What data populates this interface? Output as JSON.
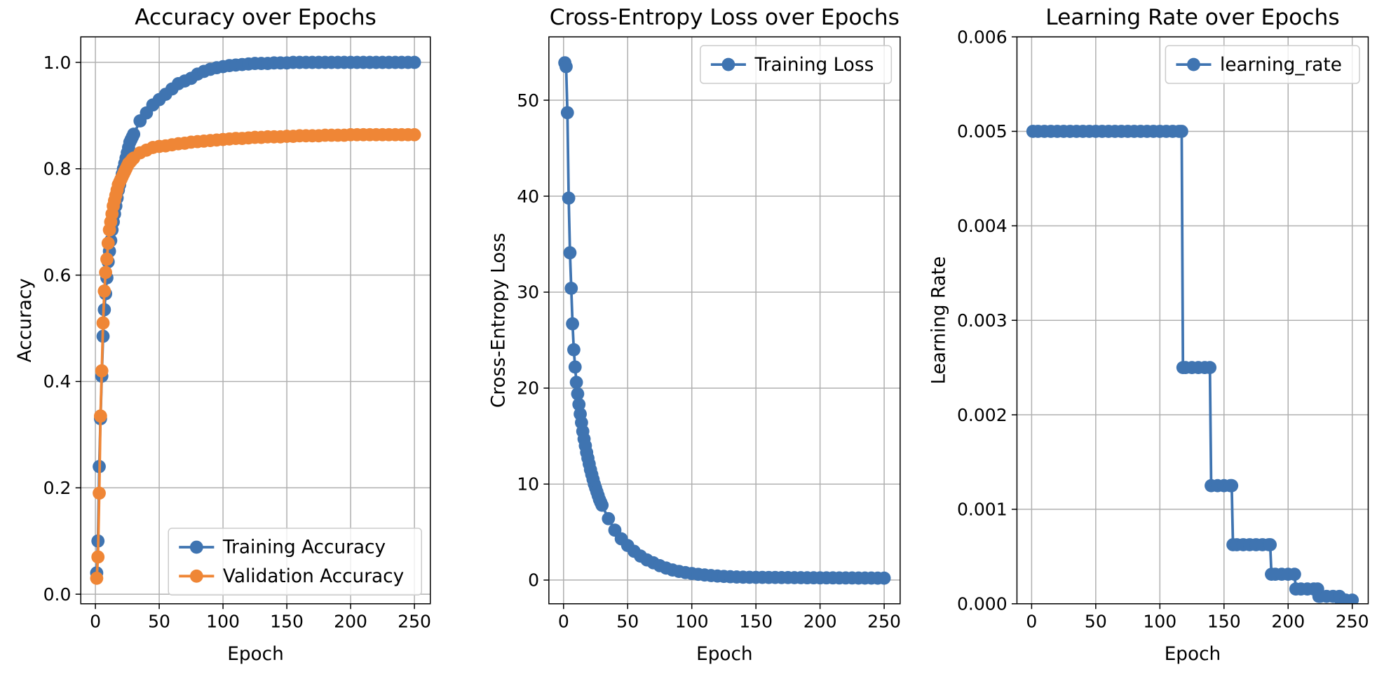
{
  "chart_data": [
    {
      "type": "line",
      "title": "Accuracy over Epochs",
      "xlabel": "Epoch",
      "ylabel": "Accuracy",
      "x": [
        1,
        2,
        3,
        4,
        5,
        6,
        7,
        8,
        9,
        10,
        11,
        12,
        13,
        14,
        15,
        16,
        17,
        18,
        19,
        20,
        21,
        22,
        23,
        24,
        25,
        26,
        27,
        28,
        29,
        30,
        35,
        40,
        45,
        50,
        55,
        60,
        65,
        70,
        75,
        80,
        85,
        90,
        95,
        100,
        105,
        110,
        115,
        120,
        125,
        130,
        135,
        140,
        145,
        150,
        155,
        160,
        165,
        170,
        175,
        180,
        185,
        190,
        195,
        200,
        205,
        210,
        215,
        220,
        225,
        230,
        235,
        240,
        245,
        250
      ],
      "series": [
        {
          "name": "Training Accuracy",
          "color": "#3f74b1",
          "values": [
            0.04,
            0.1,
            0.24,
            0.33,
            0.41,
            0.485,
            0.535,
            0.565,
            0.595,
            0.625,
            0.645,
            0.665,
            0.685,
            0.7,
            0.715,
            0.73,
            0.745,
            0.76,
            0.77,
            0.78,
            0.79,
            0.8,
            0.81,
            0.82,
            0.83,
            0.84,
            0.85,
            0.855,
            0.86,
            0.865,
            0.89,
            0.905,
            0.92,
            0.93,
            0.94,
            0.95,
            0.96,
            0.965,
            0.97,
            0.978,
            0.983,
            0.987,
            0.99,
            0.992,
            0.994,
            0.995,
            0.996,
            0.997,
            0.998,
            0.998,
            0.998,
            0.999,
            0.999,
            0.999,
            1.0,
            1.0,
            1.0,
            1.0,
            1.0,
            1.0,
            1.0,
            1.0,
            1.0,
            1.0,
            1.0,
            1.0,
            1.0,
            1.0,
            1.0,
            1.0,
            1.0,
            1.0,
            1.0,
            1.0
          ]
        },
        {
          "name": "Validation Accuracy",
          "color": "#ef8636",
          "values": [
            0.03,
            0.07,
            0.19,
            0.335,
            0.42,
            0.51,
            0.57,
            0.605,
            0.63,
            0.66,
            0.685,
            0.7,
            0.715,
            0.73,
            0.74,
            0.75,
            0.76,
            0.77,
            0.775,
            0.78,
            0.785,
            0.79,
            0.795,
            0.8,
            0.805,
            0.81,
            0.812,
            0.815,
            0.818,
            0.82,
            0.83,
            0.835,
            0.84,
            0.842,
            0.843,
            0.845,
            0.847,
            0.848,
            0.85,
            0.851,
            0.852,
            0.853,
            0.854,
            0.855,
            0.856,
            0.857,
            0.857,
            0.858,
            0.859,
            0.859,
            0.86,
            0.86,
            0.86,
            0.861,
            0.861,
            0.862,
            0.862,
            0.862,
            0.862,
            0.863,
            0.863,
            0.863,
            0.863,
            0.864,
            0.864,
            0.864,
            0.864,
            0.864,
            0.864,
            0.864,
            0.864,
            0.864,
            0.864,
            0.864
          ]
        }
      ],
      "xlim": [
        -11.45,
        262.45
      ],
      "ylim": [
        -0.018,
        1.048
      ],
      "xticks": [
        0,
        50,
        100,
        150,
        200,
        250
      ],
      "yticks": [
        {
          "value": 0,
          "label": "0.0"
        },
        0.2,
        0.4,
        0.6,
        0.8,
        {
          "value": 1,
          "label": "1.0"
        }
      ],
      "grid": true,
      "legend": "lower right"
    },
    {
      "type": "line",
      "title": "Cross-Entropy Loss over Epochs",
      "xlabel": "Epoch",
      "ylabel": "Cross-Entropy Loss",
      "x": [
        1,
        2,
        3,
        4,
        5,
        6,
        7,
        8,
        9,
        10,
        11,
        12,
        13,
        14,
        15,
        16,
        17,
        18,
        19,
        20,
        21,
        22,
        23,
        24,
        25,
        26,
        27,
        28,
        29,
        30,
        35,
        40,
        45,
        50,
        55,
        60,
        65,
        70,
        75,
        80,
        85,
        90,
        95,
        100,
        105,
        110,
        115,
        120,
        125,
        130,
        135,
        140,
        145,
        150,
        155,
        160,
        165,
        170,
        175,
        180,
        185,
        190,
        195,
        200,
        205,
        210,
        215,
        220,
        225,
        230,
        235,
        240,
        245,
        250
      ],
      "series": [
        {
          "name": "Training Loss",
          "color": "#3f74b1",
          "values": [
            53.9,
            53.5,
            48.7,
            39.8,
            34.1,
            30.4,
            26.7,
            24.0,
            22.2,
            20.6,
            19.4,
            18.3,
            17.3,
            16.4,
            15.5,
            14.7,
            14.0,
            13.3,
            12.7,
            12.1,
            11.5,
            11.0,
            10.5,
            10.0,
            9.6,
            9.2,
            8.8,
            8.4,
            8.1,
            7.8,
            6.4,
            5.2,
            4.3,
            3.6,
            3.0,
            2.5,
            2.1,
            1.8,
            1.5,
            1.25,
            1.05,
            0.9,
            0.78,
            0.68,
            0.6,
            0.53,
            0.47,
            0.42,
            0.38,
            0.35,
            0.32,
            0.3,
            0.29,
            0.28,
            0.28,
            0.27,
            0.27,
            0.26,
            0.26,
            0.25,
            0.25,
            0.24,
            0.24,
            0.23,
            0.23,
            0.23,
            0.22,
            0.22,
            0.22,
            0.21,
            0.21,
            0.21,
            0.2,
            0.2
          ]
        }
      ],
      "xlim": [
        -11.45,
        262.45
      ],
      "ylim": [
        -2.47,
        56.6
      ],
      "xticks": [
        0,
        50,
        100,
        150,
        200,
        250
      ],
      "yticks": [
        0,
        10,
        20,
        30,
        40,
        50
      ],
      "grid": true,
      "legend": "upper right"
    },
    {
      "type": "line",
      "title": "Learning Rate over Epochs",
      "xlabel": "Epoch",
      "ylabel": "Learning Rate",
      "x": [
        1,
        5,
        10,
        15,
        20,
        25,
        30,
        35,
        40,
        45,
        50,
        55,
        60,
        65,
        70,
        75,
        80,
        85,
        90,
        95,
        100,
        105,
        110,
        115,
        117,
        118,
        120,
        125,
        130,
        135,
        139,
        140,
        145,
        150,
        155,
        156,
        157,
        160,
        165,
        170,
        175,
        180,
        185,
        186,
        187,
        190,
        195,
        200,
        205,
        206,
        210,
        215,
        220,
        223,
        224,
        225,
        230,
        235,
        240,
        241,
        245,
        250
      ],
      "series": [
        {
          "name": "learning_rate",
          "color": "#3f74b1",
          "values": [
            0.005,
            0.005,
            0.005,
            0.005,
            0.005,
            0.005,
            0.005,
            0.005,
            0.005,
            0.005,
            0.005,
            0.005,
            0.005,
            0.005,
            0.005,
            0.005,
            0.005,
            0.005,
            0.005,
            0.005,
            0.005,
            0.005,
            0.005,
            0.005,
            0.005,
            0.0025,
            0.0025,
            0.0025,
            0.0025,
            0.0025,
            0.0025,
            0.00125,
            0.00125,
            0.00125,
            0.00125,
            0.00125,
            0.000625,
            0.000625,
            0.000625,
            0.000625,
            0.000625,
            0.000625,
            0.000625,
            0.000625,
            0.0003125,
            0.0003125,
            0.0003125,
            0.0003125,
            0.0003125,
            0.00015625,
            0.00015625,
            0.00015625,
            0.00015625,
            0.00015625,
            7.8125e-05,
            7.8125e-05,
            7.8125e-05,
            7.8125e-05,
            7.8125e-05,
            3.90625e-05,
            3.90625e-05,
            3.90625e-05
          ]
        }
      ],
      "xlim": [
        -11.45,
        262.45
      ],
      "ylim": [
        0,
        0.006
      ],
      "xticks": [
        0,
        50,
        100,
        150,
        200,
        250
      ],
      "yticks": [
        {
          "value": 0,
          "label": "0.000"
        },
        0.001,
        0.002,
        0.003,
        0.004,
        0.005,
        0.006
      ],
      "grid": true,
      "legend": "upper right"
    }
  ]
}
